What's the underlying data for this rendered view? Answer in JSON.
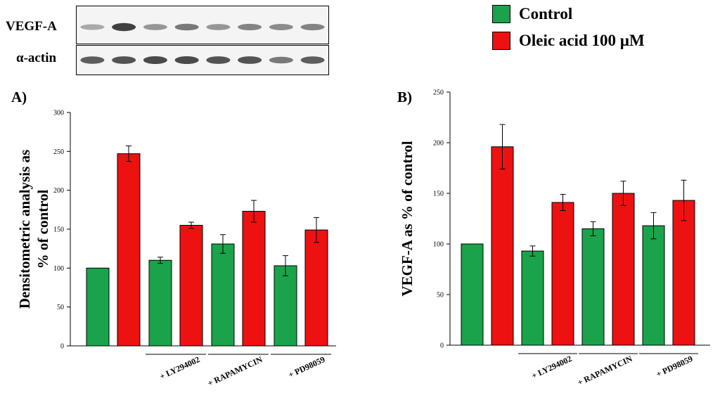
{
  "blot": {
    "rows": [
      {
        "label": "VEGF-A",
        "intensities": [
          0.35,
          0.9,
          0.45,
          0.6,
          0.45,
          0.55,
          0.5,
          0.55
        ]
      },
      {
        "label": "α-actin",
        "intensities": [
          0.75,
          0.8,
          0.85,
          0.85,
          0.8,
          0.8,
          0.6,
          0.75
        ]
      }
    ]
  },
  "legend": {
    "items": [
      {
        "label": "Control",
        "color": "#1aa34a"
      },
      {
        "label": "Oleic acid 100 µM",
        "color": "#ee1111"
      }
    ]
  },
  "colors": {
    "control": "#1aa34a",
    "oleic": "#ee1111"
  },
  "chart_data": [
    {
      "type": "bar",
      "panel": "A)",
      "ylabel": "Densitometric analysis as % of control",
      "ylabel_lines": [
        "Densitometric analysis as",
        "% of control"
      ],
      "ylim": [
        0,
        300
      ],
      "yticks": [
        0,
        50,
        100,
        150,
        200,
        250,
        300
      ],
      "groups": [
        "",
        "+ LY294002",
        "+ RAPAMYCIN",
        "+ PD98059"
      ],
      "series": [
        {
          "name": "Control",
          "values": [
            100,
            110,
            131,
            103
          ],
          "errors": [
            0,
            4,
            12,
            13
          ]
        },
        {
          "name": "Oleic acid 100 µM",
          "values": [
            247,
            155,
            173,
            149
          ],
          "errors": [
            10,
            4,
            14,
            16
          ]
        }
      ]
    },
    {
      "type": "bar",
      "panel": "B)",
      "ylabel": "VEGF-A as % of control",
      "ylabel_lines": [
        "VEGF-A as % of control"
      ],
      "ylim": [
        0,
        250
      ],
      "yticks": [
        0,
        50,
        100,
        150,
        200,
        250
      ],
      "groups": [
        "",
        "+ LY294002",
        "+ RAPAMYCIN",
        "+ PD98059"
      ],
      "series": [
        {
          "name": "Control",
          "values": [
            100,
            93,
            115,
            118
          ],
          "errors": [
            0,
            5,
            7,
            13
          ]
        },
        {
          "name": "Oleic acid 100 µM",
          "values": [
            196,
            141,
            150,
            143
          ],
          "errors": [
            22,
            8,
            12,
            20
          ]
        }
      ]
    }
  ]
}
